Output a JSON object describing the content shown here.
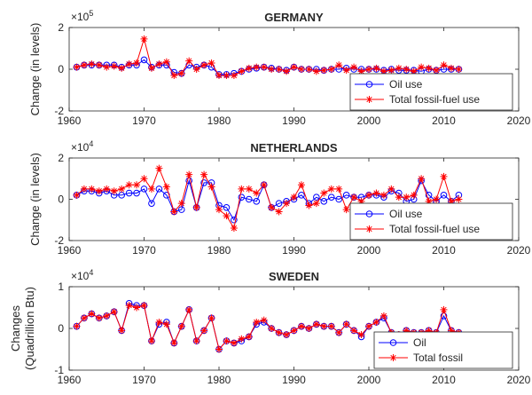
{
  "chart_data": [
    {
      "type": "line",
      "title": "GERMANY",
      "ylabel_lines": [
        "Change (in levels)"
      ],
      "exponent_base": "×10",
      "exponent_power": "5",
      "scale": 100000,
      "xlim": [
        1960,
        2020
      ],
      "ylim": [
        -2,
        2
      ],
      "xticks": [
        1960,
        1970,
        1980,
        1990,
        2000,
        2010,
        2020
      ],
      "yticks": [
        -2,
        0,
        2
      ],
      "x": [
        1961,
        1962,
        1963,
        1964,
        1965,
        1966,
        1967,
        1968,
        1969,
        1970,
        1971,
        1972,
        1973,
        1974,
        1975,
        1976,
        1977,
        1978,
        1979,
        1980,
        1981,
        1982,
        1983,
        1984,
        1985,
        1986,
        1987,
        1988,
        1989,
        1990,
        1991,
        1992,
        1993,
        1994,
        1995,
        1996,
        1997,
        1998,
        1999,
        2000,
        2001,
        2002,
        2003,
        2004,
        2005,
        2006,
        2007,
        2008,
        2009,
        2010,
        2011,
        2012
      ],
      "series": [
        {
          "name": "Oil use",
          "color": "#0000ff",
          "marker": "circle",
          "values": [
            0.1,
            0.2,
            0.2,
            0.2,
            0.2,
            0.2,
            0.1,
            0.2,
            0.2,
            0.45,
            0.1,
            0.2,
            0.2,
            -0.15,
            -0.2,
            0.2,
            0.1,
            0.2,
            0.1,
            -0.25,
            -0.25,
            -0.2,
            -0.1,
            0,
            0.05,
            0.1,
            0.05,
            0,
            -0.05,
            0.1,
            0,
            0,
            0,
            -0.05,
            0,
            0,
            0.05,
            0,
            0,
            0,
            0,
            -0.05,
            0,
            -0.05,
            -0.05,
            -0.05,
            -0.1,
            0,
            -0.05,
            0,
            0,
            0
          ]
        },
        {
          "name": "Total fossil-fuel use",
          "color": "#ff0000",
          "marker": "star",
          "values": [
            0.1,
            0.2,
            0.25,
            0.2,
            0.1,
            0.15,
            0.05,
            0.25,
            0.3,
            1.45,
            0.05,
            0.25,
            0.35,
            -0.3,
            -0.2,
            0.4,
            0,
            0.2,
            0.3,
            -0.3,
            -0.3,
            -0.3,
            -0.1,
            0.05,
            0.1,
            0.1,
            0,
            0,
            -0.1,
            0.1,
            0,
            0,
            -0.1,
            -0.05,
            0,
            0.2,
            -0.05,
            0.1,
            -0.1,
            0,
            0.05,
            -0.1,
            -0.05,
            0.05,
            0,
            -0.1,
            0.1,
            0.05,
            -0.05,
            0.2,
            0.05,
            0
          ]
        }
      ]
    },
    {
      "type": "line",
      "title": "NETHERLANDS",
      "ylabel_lines": [
        "Change (in levels)"
      ],
      "exponent_base": "×10",
      "exponent_power": "4",
      "scale": 10000,
      "xlim": [
        1960,
        2020
      ],
      "ylim": [
        -2,
        2
      ],
      "xticks": [
        1960,
        1970,
        1980,
        1990,
        2000,
        2010,
        2020
      ],
      "yticks": [
        -2,
        0,
        2
      ],
      "x": [
        1961,
        1962,
        1963,
        1964,
        1965,
        1966,
        1967,
        1968,
        1969,
        1970,
        1971,
        1972,
        1973,
        1974,
        1975,
        1976,
        1977,
        1978,
        1979,
        1980,
        1981,
        1982,
        1983,
        1984,
        1985,
        1986,
        1987,
        1988,
        1989,
        1990,
        1991,
        1992,
        1993,
        1994,
        1995,
        1996,
        1997,
        1998,
        1999,
        2000,
        2001,
        2002,
        2003,
        2004,
        2005,
        2006,
        2007,
        2008,
        2009,
        2010,
        2011,
        2012
      ],
      "series": [
        {
          "name": "Oil use",
          "color": "#0000ff",
          "marker": "circle",
          "values": [
            0.2,
            0.4,
            0.4,
            0.3,
            0.4,
            0.2,
            0.2,
            0.3,
            0.3,
            0.5,
            -0.2,
            0.5,
            0.2,
            -0.6,
            -0.5,
            0.9,
            -0.4,
            0.8,
            0.8,
            -0.3,
            -0.4,
            -1.0,
            0.1,
            0,
            -0.1,
            0.7,
            -0.4,
            -0.2,
            -0.1,
            0,
            0.2,
            -0.2,
            0.1,
            -0.1,
            0.1,
            0,
            0.2,
            0.1,
            0.1,
            0.2,
            0.2,
            0.1,
            0.4,
            0.3,
            -0.1,
            0,
            0.9,
            0.2,
            -0.1,
            0.2,
            -0.1,
            0.2
          ]
        },
        {
          "name": "Total fossil-fuel use",
          "color": "#ff0000",
          "marker": "star",
          "values": [
            0.2,
            0.5,
            0.5,
            0.4,
            0.5,
            0.4,
            0.5,
            0.7,
            0.7,
            1.0,
            0.5,
            1.5,
            0.6,
            -0.6,
            -0.2,
            1.2,
            -0.4,
            1.2,
            0.6,
            -0.5,
            -0.8,
            -1.4,
            0.5,
            0.5,
            0.3,
            0.7,
            -0.4,
            -0.6,
            -0.2,
            0.1,
            0.7,
            -0.3,
            -0.2,
            0.3,
            0.5,
            0.5,
            -0.5,
            0.1,
            -0.1,
            0.2,
            0.3,
            0.2,
            0.5,
            0.1,
            0.1,
            0.2,
            1.0,
            -0.1,
            0,
            1.1,
            -0.1,
            0
          ]
        }
      ]
    },
    {
      "type": "line",
      "title": "SWEDEN",
      "ylabel_lines": [
        "Changes",
        "(Quadrillion Btu)"
      ],
      "exponent_base": "×10",
      "exponent_power": "4",
      "scale": 10000,
      "xlim": [
        1960,
        2020
      ],
      "ylim": [
        -1,
        1
      ],
      "xticks": [
        1960,
        1970,
        1980,
        1990,
        2000,
        2010,
        2020
      ],
      "yticks": [
        -1,
        0,
        1
      ],
      "x": [
        1961,
        1962,
        1963,
        1964,
        1965,
        1966,
        1967,
        1968,
        1969,
        1970,
        1971,
        1972,
        1973,
        1974,
        1975,
        1976,
        1977,
        1978,
        1979,
        1980,
        1981,
        1982,
        1983,
        1984,
        1985,
        1986,
        1987,
        1988,
        1989,
        1990,
        1991,
        1992,
        1993,
        1994,
        1995,
        1996,
        1997,
        1998,
        1999,
        2000,
        2001,
        2002,
        2003,
        2004,
        2005,
        2006,
        2007,
        2008,
        2009,
        2010,
        2011,
        2012
      ],
      "series": [
        {
          "name": "Oil",
          "color": "#0000ff",
          "marker": "circle",
          "values": [
            0.05,
            0.25,
            0.35,
            0.25,
            0.3,
            0.4,
            -0.05,
            0.6,
            0.55,
            0.55,
            -0.3,
            0.1,
            0.15,
            -0.35,
            0.05,
            0.45,
            -0.3,
            -0.05,
            0.25,
            -0.5,
            -0.3,
            -0.35,
            -0.3,
            -0.2,
            0.1,
            0.15,
            0,
            -0.1,
            -0.15,
            -0.05,
            0.05,
            0,
            0.1,
            0.05,
            0.05,
            -0.1,
            0.1,
            -0.05,
            -0.2,
            0.05,
            0.15,
            0.25,
            -0.1,
            -0.15,
            -0.05,
            -0.1,
            -0.1,
            -0.05,
            -0.1,
            0.3,
            -0.05,
            -0.1
          ]
        },
        {
          "name": "Total fossil",
          "color": "#ff0000",
          "marker": "star",
          "values": [
            0.05,
            0.25,
            0.35,
            0.25,
            0.3,
            0.4,
            -0.05,
            0.55,
            0.5,
            0.55,
            -0.3,
            0.15,
            0.1,
            -0.35,
            0.05,
            0.45,
            -0.3,
            -0.05,
            0.25,
            -0.5,
            -0.3,
            -0.35,
            -0.25,
            -0.2,
            0.15,
            0.2,
            0,
            -0.1,
            -0.15,
            -0.05,
            0.05,
            0,
            0.1,
            0.05,
            0.05,
            -0.1,
            0.1,
            -0.05,
            -0.15,
            0.05,
            0.15,
            0.3,
            -0.1,
            -0.15,
            -0.05,
            -0.1,
            -0.1,
            -0.05,
            -0.1,
            0.45,
            -0.05,
            -0.1
          ]
        }
      ]
    }
  ]
}
